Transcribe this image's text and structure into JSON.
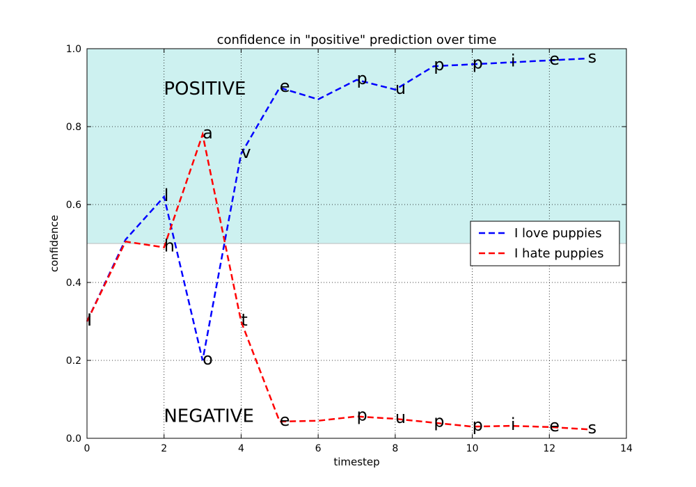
{
  "chart_data": {
    "type": "line",
    "title": "confidence in \"positive\" prediction over time",
    "xlabel": "timestep",
    "ylabel": "confidence",
    "xlim": [
      0,
      14
    ],
    "ylim": [
      0.0,
      1.0
    ],
    "xticks": [
      0,
      2,
      4,
      6,
      8,
      10,
      12,
      14
    ],
    "xtick_labels": [
      "0",
      "2",
      "4",
      "6",
      "8",
      "10",
      "12",
      "14"
    ],
    "yticks": [
      0.0,
      0.2,
      0.4,
      0.6,
      0.8,
      1.0
    ],
    "ytick_labels": [
      "0.0",
      "0.2",
      "0.4",
      "0.6",
      "0.8",
      "1.0"
    ],
    "grid": true,
    "legend_position": "center-right",
    "regions": [
      {
        "label": "POSITIVE",
        "from": 0.5,
        "to": 1.0,
        "color": "#cdf1f0",
        "label_x": 1,
        "label_y": 0.9
      },
      {
        "label": "NEGATIVE",
        "from": 0.0,
        "to": 0.5,
        "color": "#ffffff",
        "label_x": 1,
        "label_y": 0.06
      }
    ],
    "threshold": 0.5,
    "series": [
      {
        "name": "I love puppies",
        "color": "#0000ff",
        "x": [
          0,
          1,
          2,
          3,
          4,
          5,
          6,
          7,
          8,
          9,
          10,
          11,
          12,
          13
        ],
        "y": [
          0.3,
          0.51,
          0.62,
          0.2,
          0.73,
          0.9,
          0.87,
          0.92,
          0.895,
          0.955,
          0.96,
          0.965,
          0.97,
          0.975
        ],
        "chars": [
          "I",
          "",
          "l",
          "o",
          "v",
          "e",
          "",
          "p",
          "u",
          "p",
          "p",
          "i",
          "e",
          "s"
        ]
      },
      {
        "name": "I hate puppies",
        "color": "#ff0000",
        "x": [
          0,
          1,
          2,
          3,
          4,
          5,
          6,
          7,
          8,
          9,
          10,
          11,
          12,
          13
        ],
        "y": [
          0.3,
          0.505,
          0.49,
          0.78,
          0.3,
          0.043,
          0.045,
          0.056,
          0.05,
          0.04,
          0.03,
          0.032,
          0.029,
          0.023
        ],
        "chars": [
          "I",
          "",
          "h",
          "a",
          "t",
          "e",
          "",
          "p",
          "u",
          "p",
          "p",
          "i",
          "e",
          "s"
        ]
      }
    ]
  }
}
